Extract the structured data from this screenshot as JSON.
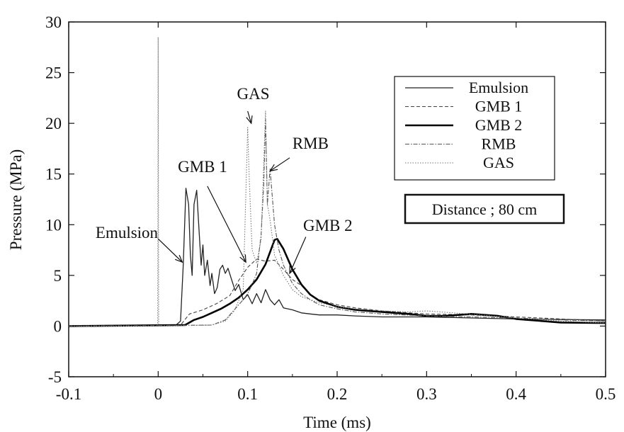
{
  "chart_data": {
    "type": "line",
    "title": "",
    "xlabel": "Time (ms)",
    "ylabel": "Pressure (MPa)",
    "xlim": [
      -0.1,
      0.5
    ],
    "ylim": [
      -5,
      30
    ],
    "xticks": [
      -0.1,
      0,
      0.1,
      0.2,
      0.3,
      0.4,
      0.5
    ],
    "xtick_labels": [
      "-0.1",
      "0",
      "0.1",
      "0.2",
      "0.3",
      "0.4",
      "0.5"
    ],
    "yticks": [
      -5,
      0,
      5,
      10,
      15,
      20,
      25,
      30
    ],
    "ytick_labels": [
      "-5",
      "0",
      "5",
      "10",
      "15",
      "20",
      "25",
      "30"
    ],
    "grid": false,
    "legend_position": "top-right",
    "legend_title": "",
    "info_box": "Distance ; 80 cm",
    "series": [
      {
        "name": "Emulsion",
        "style": "solid-thin",
        "color": "#222222",
        "points": [
          [
            -0.1,
            0
          ],
          [
            0.02,
            0.1
          ],
          [
            0.025,
            0.5
          ],
          [
            0.028,
            6
          ],
          [
            0.031,
            13.6
          ],
          [
            0.034,
            12
          ],
          [
            0.036,
            7
          ],
          [
            0.038,
            5
          ],
          [
            0.04,
            12
          ],
          [
            0.043,
            13.4
          ],
          [
            0.046,
            9
          ],
          [
            0.048,
            6
          ],
          [
            0.05,
            8
          ],
          [
            0.052,
            5
          ],
          [
            0.055,
            6.5
          ],
          [
            0.058,
            4
          ],
          [
            0.06,
            5.2
          ],
          [
            0.063,
            3.2
          ],
          [
            0.066,
            3.8
          ],
          [
            0.069,
            5.6
          ],
          [
            0.072,
            6
          ],
          [
            0.075,
            5.2
          ],
          [
            0.078,
            5.7
          ],
          [
            0.082,
            4.6
          ],
          [
            0.086,
            3.5
          ],
          [
            0.09,
            4.1
          ],
          [
            0.095,
            2.6
          ],
          [
            0.1,
            3.1
          ],
          [
            0.105,
            2.2
          ],
          [
            0.11,
            3.2
          ],
          [
            0.115,
            2.3
          ],
          [
            0.12,
            3.6
          ],
          [
            0.125,
            2.6
          ],
          [
            0.13,
            2.1
          ],
          [
            0.135,
            2.6
          ],
          [
            0.14,
            1.8
          ],
          [
            0.15,
            1.6
          ],
          [
            0.16,
            1.3
          ],
          [
            0.17,
            1.2
          ],
          [
            0.18,
            1.1
          ],
          [
            0.2,
            1.1
          ],
          [
            0.22,
            1
          ],
          [
            0.25,
            0.9
          ],
          [
            0.3,
            0.9
          ],
          [
            0.35,
            0.8
          ],
          [
            0.4,
            0.7
          ],
          [
            0.45,
            0.65
          ],
          [
            0.5,
            0.6
          ]
        ]
      },
      {
        "name": "GMB 1",
        "style": "dashed",
        "color": "#444444",
        "points": [
          [
            -0.1,
            0
          ],
          [
            0.025,
            0.1
          ],
          [
            0.035,
            1.2
          ],
          [
            0.05,
            1.6
          ],
          [
            0.065,
            2.2
          ],
          [
            0.08,
            3
          ],
          [
            0.09,
            4.5
          ],
          [
            0.1,
            5.8
          ],
          [
            0.11,
            6.6
          ],
          [
            0.12,
            6.4
          ],
          [
            0.13,
            6.5
          ],
          [
            0.14,
            5.6
          ],
          [
            0.15,
            4.6
          ],
          [
            0.16,
            4
          ],
          [
            0.17,
            3.1
          ],
          [
            0.18,
            2.6
          ],
          [
            0.2,
            2.1
          ],
          [
            0.22,
            1.8
          ],
          [
            0.25,
            1.5
          ],
          [
            0.28,
            1.3
          ],
          [
            0.3,
            1.2
          ],
          [
            0.35,
            1.1
          ],
          [
            0.4,
            0.9
          ],
          [
            0.45,
            0.7
          ],
          [
            0.5,
            0.5
          ]
        ]
      },
      {
        "name": "GMB 2",
        "style": "solid-thick",
        "color": "#000000",
        "points": [
          [
            -0.1,
            0
          ],
          [
            0.03,
            0.1
          ],
          [
            0.04,
            0.6
          ],
          [
            0.05,
            0.9
          ],
          [
            0.06,
            1.3
          ],
          [
            0.07,
            1.7
          ],
          [
            0.08,
            2.2
          ],
          [
            0.09,
            2.8
          ],
          [
            0.1,
            3.6
          ],
          [
            0.11,
            4.6
          ],
          [
            0.12,
            6.1
          ],
          [
            0.125,
            7.3
          ],
          [
            0.13,
            8.5
          ],
          [
            0.133,
            8.6
          ],
          [
            0.14,
            7.6
          ],
          [
            0.15,
            5.6
          ],
          [
            0.16,
            4.1
          ],
          [
            0.17,
            3.1
          ],
          [
            0.18,
            2.5
          ],
          [
            0.2,
            1.9
          ],
          [
            0.22,
            1.6
          ],
          [
            0.25,
            1.4
          ],
          [
            0.28,
            1.2
          ],
          [
            0.3,
            1
          ],
          [
            0.32,
            1
          ],
          [
            0.35,
            1.2
          ],
          [
            0.38,
            1
          ],
          [
            0.4,
            0.7
          ],
          [
            0.45,
            0.35
          ],
          [
            0.5,
            0.3
          ]
        ]
      },
      {
        "name": "RMB",
        "style": "dash-dot",
        "color": "#555555",
        "points": [
          [
            -0.1,
            0
          ],
          [
            0.06,
            0.1
          ],
          [
            0.075,
            0.6
          ],
          [
            0.085,
            1.6
          ],
          [
            0.095,
            2.6
          ],
          [
            0.1,
            3.2
          ],
          [
            0.105,
            4.1
          ],
          [
            0.11,
            5.2
          ],
          [
            0.115,
            9
          ],
          [
            0.118,
            14
          ],
          [
            0.12,
            20.4
          ],
          [
            0.122,
            12
          ],
          [
            0.125,
            15.5
          ],
          [
            0.13,
            10
          ],
          [
            0.135,
            7.5
          ],
          [
            0.14,
            6
          ],
          [
            0.15,
            4.2
          ],
          [
            0.16,
            3.2
          ],
          [
            0.17,
            2.6
          ],
          [
            0.18,
            2.1
          ],
          [
            0.2,
            1.7
          ],
          [
            0.22,
            1.4
          ],
          [
            0.25,
            1.2
          ],
          [
            0.3,
            1
          ],
          [
            0.35,
            0.9
          ],
          [
            0.4,
            0.8
          ],
          [
            0.45,
            0.6
          ],
          [
            0.5,
            0.5
          ]
        ]
      },
      {
        "name": "GAS",
        "style": "dotted",
        "color": "#777777",
        "points": [
          [
            -0.1,
            0
          ],
          [
            -0.0005,
            0
          ],
          [
            0,
            28.5
          ],
          [
            0.0005,
            0
          ],
          [
            0.06,
            0.1
          ],
          [
            0.075,
            0.5
          ],
          [
            0.085,
            1.5
          ],
          [
            0.09,
            2.5
          ],
          [
            0.095,
            3.6
          ],
          [
            0.1,
            19.6
          ],
          [
            0.102,
            14
          ],
          [
            0.105,
            7.5
          ],
          [
            0.11,
            6.2
          ],
          [
            0.115,
            8.5
          ],
          [
            0.12,
            21.2
          ],
          [
            0.122,
            12
          ],
          [
            0.125,
            10.5
          ],
          [
            0.13,
            7
          ],
          [
            0.14,
            5
          ],
          [
            0.15,
            3.6
          ],
          [
            0.16,
            2.9
          ],
          [
            0.18,
            2.3
          ],
          [
            0.2,
            1.9
          ],
          [
            0.22,
            1.7
          ],
          [
            0.25,
            1.5
          ],
          [
            0.28,
            1.4
          ],
          [
            0.3,
            1.5
          ],
          [
            0.33,
            1.3
          ],
          [
            0.36,
            1.1
          ],
          [
            0.4,
            0.8
          ],
          [
            0.45,
            0.5
          ],
          [
            0.5,
            0.3
          ]
        ]
      }
    ],
    "annotations": [
      {
        "text": "GAS",
        "label_at": [
          0.088,
          22.4
        ],
        "arrow_from": [
          0.1,
          21.2
        ],
        "arrow_to": [
          0.104,
          20.0
        ]
      },
      {
        "text": "RMB",
        "label_at": [
          0.15,
          17.5
        ],
        "arrow_from": [
          0.147,
          16.6
        ],
        "arrow_to": [
          0.125,
          15.3
        ]
      },
      {
        "text": "GMB 1",
        "label_at": [
          0.022,
          15.2
        ],
        "arrow_from": [
          0.055,
          13.8
        ],
        "arrow_to": [
          0.098,
          6.3
        ]
      },
      {
        "text": "Emulsion",
        "label_at": [
          -0.07,
          8.7
        ],
        "arrow_from": [
          0.0,
          8.6
        ],
        "arrow_to": [
          0.027,
          6.3
        ]
      },
      {
        "text": "GMB 2",
        "label_at": [
          0.162,
          9.4
        ],
        "arrow_from": [
          0.165,
          8.8
        ],
        "arrow_to": [
          0.147,
          5.2
        ]
      }
    ]
  }
}
